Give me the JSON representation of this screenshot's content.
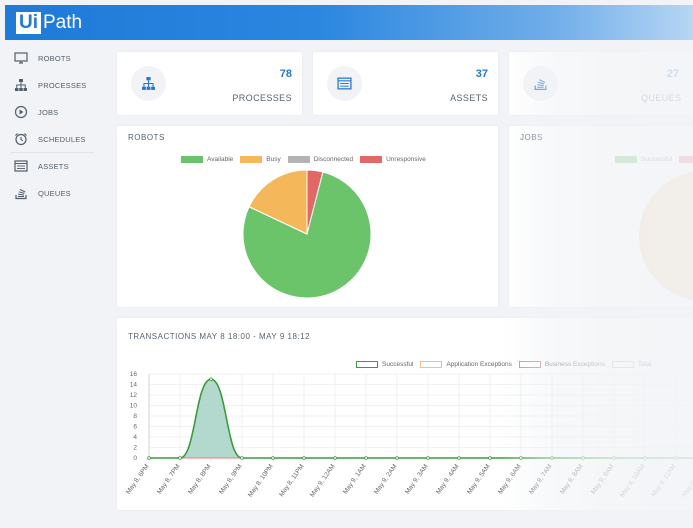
{
  "brand": {
    "box": "Ui",
    "rest": "Path"
  },
  "sidebar": {
    "items": [
      {
        "label": "ROBOTS",
        "icon": "monitor-icon"
      },
      {
        "label": "PROCESSES",
        "icon": "hierarchy-icon"
      },
      {
        "label": "JOBS",
        "icon": "play-circle-icon"
      },
      {
        "label": "SCHEDULES",
        "icon": "alarm-clock-icon"
      },
      {
        "label": "ASSETS",
        "icon": "list-box-icon"
      },
      {
        "label": "QUEUES",
        "icon": "stack-icon"
      }
    ]
  },
  "stats": [
    {
      "value": "78",
      "label": "PROCESSES",
      "icon": "hierarchy-icon"
    },
    {
      "value": "37",
      "label": "ASSETS",
      "icon": "list-box-icon"
    },
    {
      "value": "27",
      "label": "QUEUES",
      "icon": "stack-icon"
    }
  ],
  "robots_card": {
    "title": "ROBOTS",
    "legend": [
      "Available",
      "Busy",
      "Disconnected",
      "Unresponsive"
    ]
  },
  "jobs_card": {
    "title": "JOBS",
    "legend": [
      "Successful"
    ]
  },
  "transactions_card": {
    "title": "TRANSACTIONS MAY 8 18:00 - MAY 9 18:12",
    "legend": [
      "Successful",
      "Application Exceptions",
      "Business Exceptions",
      "Total"
    ]
  },
  "colors": {
    "available": "#6cc46a",
    "busy": "#f4b75a",
    "disconnected": "#b3b3b3",
    "unresponsive": "#e26868",
    "successful_line": "#3d9a3d",
    "successful_fill": "#a6d2c6",
    "app_exceptions": "#f4c27a",
    "business_exceptions": "#e07b7b",
    "total": "#9cc3ea",
    "jobs_pie": "#f6d5ad"
  },
  "chart_data": [
    {
      "type": "pie",
      "title": "ROBOTS",
      "categories": [
        "Available",
        "Busy",
        "Disconnected",
        "Unresponsive"
      ],
      "values": [
        78,
        18,
        0,
        4
      ]
    },
    {
      "type": "line",
      "title": "TRANSACTIONS MAY 8 18:00 - MAY 9 18:12",
      "categories": [
        "May 8, 6PM",
        "May 8, 7PM",
        "May 8, 8PM",
        "May 8, 9PM",
        "May 8, 10PM",
        "May 8, 11PM",
        "May 9, 12AM",
        "May 9, 1AM",
        "May 9, 2AM",
        "May 9, 3AM",
        "May 9, 4AM",
        "May 9, 5AM",
        "May 9, 6AM",
        "May 9, 7AM",
        "May 9, 8AM",
        "May 9, 9AM",
        "May 9, 10AM",
        "May 9, 11AM",
        "May 9, 12PM"
      ],
      "series": [
        {
          "name": "Successful",
          "values": [
            0,
            0,
            15,
            0,
            0,
            0,
            0,
            0,
            0,
            0,
            0,
            0,
            0,
            0,
            0,
            0,
            0,
            0,
            0
          ]
        },
        {
          "name": "Application Exceptions",
          "values": [
            0,
            0,
            0,
            0,
            0,
            0,
            0,
            0,
            0,
            0,
            0,
            0,
            0,
            0,
            0,
            0,
            0,
            0,
            0
          ]
        },
        {
          "name": "Business Exceptions",
          "values": [
            0,
            0,
            0,
            0,
            0,
            0,
            0,
            0,
            0,
            0,
            0,
            0,
            0,
            0,
            0,
            0,
            0,
            0,
            0
          ]
        },
        {
          "name": "Total",
          "values": [
            0,
            0,
            15,
            0,
            0,
            0,
            0,
            0,
            0,
            0,
            0,
            0,
            0,
            0,
            0,
            0,
            0,
            0,
            0
          ]
        }
      ],
      "yticks": [
        0,
        2,
        4,
        6,
        8,
        10,
        12,
        14,
        16
      ],
      "ylim": [
        0,
        16
      ],
      "grid": true,
      "legend": "top-right"
    }
  ]
}
